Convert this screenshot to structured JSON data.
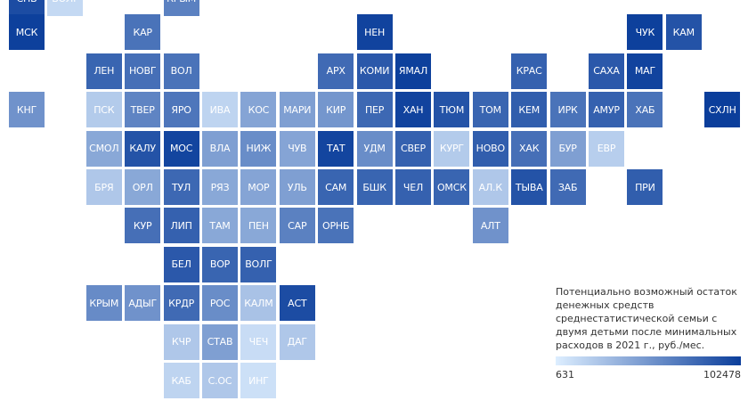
{
  "regions": [
    {
      "label": "СПБ",
      "value": 0.92
    },
    {
      "label": "ВОЛГ",
      "value": 0.12
    },
    {
      "label": "КРЫМ",
      "value": 0.62
    },
    {
      "label": "МСК",
      "value": 0.99
    },
    {
      "label": "КАР",
      "value": 0.7
    },
    {
      "label": "НЕН",
      "value": 0.97
    },
    {
      "label": "ЧУК",
      "value": 0.99
    },
    {
      "label": "КАМ",
      "value": 0.88
    },
    {
      "label": "ЛЕН",
      "value": 0.78
    },
    {
      "label": "НОВГ",
      "value": 0.72
    },
    {
      "label": "ВОЛ",
      "value": 0.7
    },
    {
      "label": "АРХ",
      "value": 0.75
    },
    {
      "label": "КОМИ",
      "value": 0.85
    },
    {
      "label": "ЯМАЛ",
      "value": 0.99
    },
    {
      "label": "КРАС",
      "value": 0.8
    },
    {
      "label": "САХА",
      "value": 0.85
    },
    {
      "label": "МАГ",
      "value": 0.97
    },
    {
      "label": "КНГ",
      "value": 0.52
    },
    {
      "label": "ПСК",
      "value": 0.2
    },
    {
      "label": "ТВЕР",
      "value": 0.6
    },
    {
      "label": "ЯРО",
      "value": 0.68
    },
    {
      "label": "ИВА",
      "value": 0.15
    },
    {
      "label": "КОС",
      "value": 0.42
    },
    {
      "label": "МАРИ",
      "value": 0.45
    },
    {
      "label": "КИР",
      "value": 0.5
    },
    {
      "label": "ПЕР",
      "value": 0.76
    },
    {
      "label": "ХАН",
      "value": 0.97
    },
    {
      "label": "ТЮМ",
      "value": 0.88
    },
    {
      "label": "ТОМ",
      "value": 0.78
    },
    {
      "label": "КЕМ",
      "value": 0.82
    },
    {
      "label": "ИРК",
      "value": 0.7
    },
    {
      "label": "АМУР",
      "value": 0.8
    },
    {
      "label": "ХАБ",
      "value": 0.7
    },
    {
      "label": "СХЛН",
      "value": 1.0
    },
    {
      "label": "СМОЛ",
      "value": 0.4
    },
    {
      "label": "КАЛУ",
      "value": 0.88
    },
    {
      "label": "МОС",
      "value": 0.96
    },
    {
      "label": "ВЛА",
      "value": 0.45
    },
    {
      "label": "НИЖ",
      "value": 0.55
    },
    {
      "label": "ЧУВ",
      "value": 0.42
    },
    {
      "label": "ТАТ",
      "value": 0.96
    },
    {
      "label": "УДМ",
      "value": 0.55
    },
    {
      "label": "СВЕР",
      "value": 0.8
    },
    {
      "label": "КУРГ",
      "value": 0.2
    },
    {
      "label": "НОВО",
      "value": 0.82
    },
    {
      "label": "ХАК",
      "value": 0.72
    },
    {
      "label": "БУР",
      "value": 0.45
    },
    {
      "label": "ЕВР",
      "value": 0.18
    },
    {
      "label": "БРЯ",
      "value": 0.22
    },
    {
      "label": "ОРЛ",
      "value": 0.4
    },
    {
      "label": "ТУЛ",
      "value": 0.76
    },
    {
      "label": "РЯЗ",
      "value": 0.4
    },
    {
      "label": "МОР",
      "value": 0.42
    },
    {
      "label": "УЛЬ",
      "value": 0.45
    },
    {
      "label": "САМ",
      "value": 0.78
    },
    {
      "label": "БШК",
      "value": 0.78
    },
    {
      "label": "ЧЕЛ",
      "value": 0.8
    },
    {
      "label": "ОМСК",
      "value": 0.78
    },
    {
      "label": "АЛ.К",
      "value": 0.22
    },
    {
      "label": "ТЫВА",
      "value": 0.88
    },
    {
      "label": "ЗАБ",
      "value": 0.75
    },
    {
      "label": "ПРИ",
      "value": 0.82
    },
    {
      "label": "КУР",
      "value": 0.72
    },
    {
      "label": "ЛИП",
      "value": 0.8
    },
    {
      "label": "ТАМ",
      "value": 0.4
    },
    {
      "label": "ПЕН",
      "value": 0.4
    },
    {
      "label": "САР",
      "value": 0.62
    },
    {
      "label": "ОРНБ",
      "value": 0.7
    },
    {
      "label": "АЛТ",
      "value": 0.52
    },
    {
      "label": "БЕЛ",
      "value": 0.85
    },
    {
      "label": "ВОР",
      "value": 0.78
    },
    {
      "label": "ВОЛГ",
      "value": 0.8
    },
    {
      "label": "КРЫМ",
      "value": 0.56
    },
    {
      "label": "АДЫГ",
      "value": 0.52
    },
    {
      "label": "КРДР",
      "value": 0.75
    },
    {
      "label": "РОС",
      "value": 0.55
    },
    {
      "label": "КАЛМ",
      "value": 0.25
    },
    {
      "label": "АСТ",
      "value": 0.92
    },
    {
      "label": "КЧР",
      "value": 0.22
    },
    {
      "label": "СТАВ",
      "value": 0.45
    },
    {
      "label": "ЧЕЧ",
      "value": 0.1
    },
    {
      "label": "ДАГ",
      "value": 0.22
    },
    {
      "label": "КАБ",
      "value": 0.15
    },
    {
      "label": "С.ОС",
      "value": 0.22
    },
    {
      "label": "ИНГ",
      "value": 0.08
    }
  ],
  "legend": {
    "title": "Потенциально возможный остаток денежных средств среднестатистической семьи с двумя детьми после минимальных расходов в 2021 г., руб./мес.",
    "min_label": "631",
    "max_label": "102478",
    "min_value": 631,
    "max_value": 102478,
    "color_low": "#ddeeff",
    "color_high": "#0b3e9b"
  },
  "colors": {
    "low": "#ddeeff",
    "high": "#0b3e9b"
  }
}
